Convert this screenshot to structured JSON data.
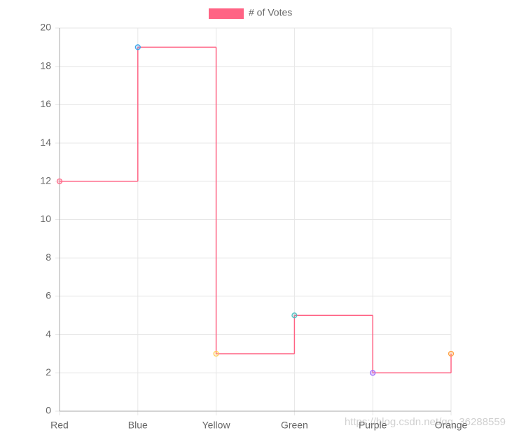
{
  "chart_data": {
    "type": "line",
    "stepped": true,
    "categories": [
      "Red",
      "Blue",
      "Yellow",
      "Green",
      "Purple",
      "Orange"
    ],
    "series": [
      {
        "name": "# of Votes",
        "color": "#ff6384",
        "point_colors": [
          "#ff6384",
          "#36a2eb",
          "#ffce56",
          "#4bc0c0",
          "#9966ff",
          "#ff9f40"
        ],
        "values": [
          12,
          19,
          3,
          5,
          2,
          3
        ]
      }
    ],
    "ylim": [
      0,
      20
    ],
    "yticks": [
      0,
      2,
      4,
      6,
      8,
      10,
      12,
      14,
      16,
      18,
      20
    ],
    "grid": true
  },
  "watermark": "https://blog.csdn.net/qq_36288559"
}
